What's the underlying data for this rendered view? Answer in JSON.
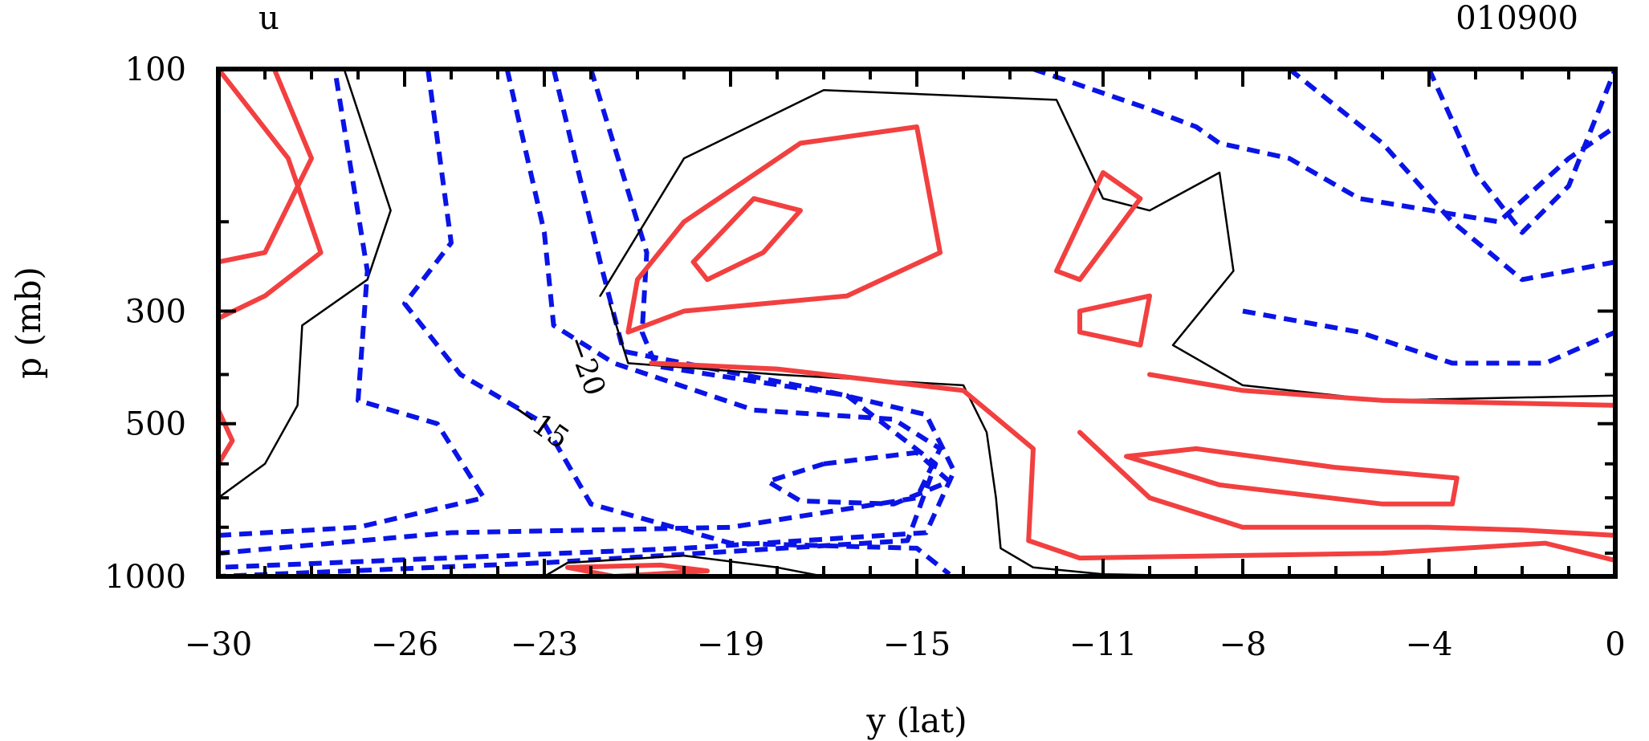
{
  "chart_data": {
    "type": "contour",
    "title_left": "u",
    "title_right": "010900",
    "xlabel": "y (lat)",
    "ylabel": "p (mb)",
    "xlim": [
      -30,
      0
    ],
    "ylim": [
      1000,
      100
    ],
    "x_tick_labels": [
      "−30",
      "−26",
      "−23",
      "−19",
      "−15",
      "−11",
      "−8",
      "−4",
      "0"
    ],
    "x_tick_values": [
      -30,
      -26,
      -23,
      -19,
      -15,
      -11,
      -8,
      -4,
      0
    ],
    "y_tick_labels": [
      "100",
      "300",
      "500",
      "1000"
    ],
    "y_tick_values": [
      100,
      300,
      500,
      1000
    ],
    "contour_labels": [
      {
        "text": "−20",
        "x": -22.3,
        "p": 390
      },
      {
        "text": "−15",
        "x": -23.2,
        "p": 520
      }
    ],
    "colors": {
      "positive": "#f24040",
      "negative": "#0a14e6",
      "zero": "#000000"
    },
    "contours": [
      {
        "kind": "zero",
        "points": [
          [
            -27.3,
            100
          ],
          [
            -26.3,
            190
          ],
          [
            -26.8,
            260
          ],
          [
            -28.2,
            320
          ],
          [
            -28.3,
            460
          ],
          [
            -29.0,
            600
          ],
          [
            -30.0,
            700
          ]
        ]
      },
      {
        "kind": "pos",
        "points": [
          [
            -30.0,
            100
          ],
          [
            -28.5,
            150
          ],
          [
            -27.8,
            230
          ],
          [
            -29.0,
            280
          ],
          [
            -30.0,
            310
          ]
        ]
      },
      {
        "kind": "pos",
        "points": [
          [
            -28.8,
            100
          ],
          [
            -28.0,
            150
          ],
          [
            -29.0,
            230
          ],
          [
            -30.0,
            240
          ]
        ]
      },
      {
        "kind": "pos",
        "points": [
          [
            -30.0,
            470
          ],
          [
            -29.7,
            540
          ],
          [
            -30.0,
            600
          ]
        ]
      },
      {
        "kind": "neg",
        "points": [
          [
            -25.5,
            100
          ],
          [
            -25.0,
            220
          ],
          [
            -26.0,
            290
          ],
          [
            -24.8,
            400
          ],
          [
            -23.0,
            500
          ],
          [
            -22.0,
            720
          ],
          [
            -19.0,
            860
          ],
          [
            -15.0,
            880
          ],
          [
            -14.3,
            990
          ]
        ]
      },
      {
        "kind": "neg",
        "points": [
          [
            -30.0,
            830
          ],
          [
            -27.0,
            800
          ],
          [
            -24.3,
            700
          ],
          [
            -25.3,
            500
          ],
          [
            -27.0,
            450
          ],
          [
            -26.8,
            250
          ],
          [
            -27.5,
            100
          ]
        ]
      },
      {
        "kind": "neg",
        "points": [
          [
            -23.8,
            100
          ],
          [
            -23.0,
            210
          ],
          [
            -22.8,
            320
          ],
          [
            -21.5,
            380
          ],
          [
            -18.5,
            470
          ],
          [
            -15.5,
            490
          ],
          [
            -14.5,
            560
          ],
          [
            -15.0,
            700
          ],
          [
            -19.0,
            800
          ],
          [
            -25.0,
            820
          ],
          [
            -30.0,
            900
          ]
        ]
      },
      {
        "kind": "neg",
        "points": [
          [
            -22.8,
            100
          ],
          [
            -21.8,
            240
          ],
          [
            -21.3,
            360
          ],
          [
            -17.0,
            430
          ],
          [
            -14.8,
            480
          ],
          [
            -14.2,
            620
          ],
          [
            -14.8,
            820
          ],
          [
            -20.0,
            880
          ],
          [
            -30.0,
            960
          ]
        ]
      },
      {
        "kind": "neg",
        "points": [
          [
            -22.0,
            100
          ],
          [
            -20.8,
            230
          ],
          [
            -20.9,
            330
          ],
          [
            -20.6,
            385
          ],
          [
            -16.5,
            440
          ],
          [
            -14.6,
            600
          ],
          [
            -15.2,
            850
          ],
          [
            -23.0,
            940
          ],
          [
            -30.0,
            1000
          ]
        ]
      },
      {
        "kind": "neg",
        "points": [
          [
            -17.0,
            600
          ],
          [
            -15.0,
            570
          ],
          [
            -14.3,
            650
          ],
          [
            -15.5,
            720
          ],
          [
            -17.5,
            710
          ],
          [
            -18.2,
            650
          ],
          [
            -17.0,
            600
          ]
        ]
      },
      {
        "kind": "zero",
        "points": [
          [
            -23.0,
            1000
          ],
          [
            -22.5,
            940
          ],
          [
            -20.0,
            910
          ],
          [
            -18.0,
            960
          ],
          [
            -17.0,
            1000
          ]
        ]
      },
      {
        "kind": "pos",
        "points": [
          [
            -22.5,
            960
          ],
          [
            -20.5,
            950
          ],
          [
            -19.5,
            975
          ],
          [
            -21.5,
            1000
          ],
          [
            -22.5,
            960
          ]
        ]
      },
      {
        "kind": "zero",
        "points": [
          [
            -21.8,
            280
          ],
          [
            -20.0,
            150
          ],
          [
            -17.0,
            110
          ],
          [
            -12.0,
            115
          ],
          [
            -11.0,
            180
          ],
          [
            -10.0,
            190
          ],
          [
            -8.5,
            160
          ],
          [
            -8.2,
            250
          ],
          [
            -9.5,
            350
          ],
          [
            -8.0,
            420
          ],
          [
            -5.0,
            450
          ],
          [
            0,
            440
          ]
        ]
      },
      {
        "kind": "zero",
        "points": [
          [
            -21.6,
            290
          ],
          [
            -21.2,
            380
          ],
          [
            -18.0,
            400
          ],
          [
            -14.0,
            420
          ],
          [
            -13.5,
            520
          ],
          [
            -13.3,
            700
          ],
          [
            -13.2,
            880
          ],
          [
            -12.5,
            960
          ],
          [
            -11.0,
            990
          ],
          [
            -8.5,
            1000
          ]
        ]
      },
      {
        "kind": "pos",
        "points": [
          [
            -21.2,
            330
          ],
          [
            -21.0,
            260
          ],
          [
            -20.0,
            200
          ],
          [
            -17.5,
            140
          ],
          [
            -15.0,
            130
          ],
          [
            -14.5,
            230
          ],
          [
            -16.5,
            280
          ],
          [
            -20.0,
            300
          ],
          [
            -21.2,
            330
          ]
        ]
      },
      {
        "kind": "pos",
        "points": [
          [
            -19.5,
            260
          ],
          [
            -18.3,
            230
          ],
          [
            -17.5,
            190
          ],
          [
            -18.5,
            180
          ],
          [
            -19.8,
            240
          ],
          [
            -19.5,
            260
          ]
        ]
      },
      {
        "kind": "pos",
        "points": [
          [
            -20.7,
            380
          ],
          [
            -18.0,
            390
          ],
          [
            -14.0,
            430
          ],
          [
            -12.5,
            560
          ],
          [
            -12.6,
            850
          ],
          [
            -11.5,
            920
          ],
          [
            -5.0,
            900
          ],
          [
            -1.5,
            860
          ],
          [
            0,
            930
          ]
        ]
      },
      {
        "kind": "pos",
        "points": [
          [
            -12.0,
            250
          ],
          [
            -11.0,
            160
          ],
          [
            -10.2,
            180
          ],
          [
            -11.5,
            260
          ],
          [
            -12.0,
            250
          ]
        ]
      },
      {
        "kind": "pos",
        "points": [
          [
            -10.0,
            400
          ],
          [
            -8.0,
            430
          ],
          [
            -5.0,
            450
          ],
          [
            0,
            460
          ]
        ]
      },
      {
        "kind": "pos",
        "points": [
          [
            -11.5,
            520
          ],
          [
            -10.0,
            700
          ],
          [
            -8.0,
            800
          ],
          [
            -4.0,
            800
          ],
          [
            -2.0,
            810
          ],
          [
            0,
            830
          ]
        ]
      },
      {
        "kind": "pos",
        "points": [
          [
            -10.5,
            580
          ],
          [
            -8.5,
            660
          ],
          [
            -5.0,
            720
          ],
          [
            -3.5,
            720
          ],
          [
            -3.4,
            640
          ],
          [
            -6.0,
            610
          ],
          [
            -9.0,
            560
          ],
          [
            -10.5,
            580
          ]
        ]
      },
      {
        "kind": "pos",
        "points": [
          [
            -11.5,
            300
          ],
          [
            -10.0,
            280
          ],
          [
            -10.2,
            350
          ],
          [
            -11.5,
            330
          ],
          [
            -11.5,
            300
          ]
        ]
      },
      {
        "kind": "neg",
        "points": [
          [
            -12.5,
            100
          ],
          [
            -10.0,
            120
          ],
          [
            -9.0,
            130
          ],
          [
            -8.5,
            140
          ],
          [
            -7.0,
            150
          ],
          [
            -5.5,
            180
          ],
          [
            -2.5,
            200
          ],
          [
            -1.0,
            150
          ],
          [
            0,
            130
          ]
        ]
      },
      {
        "kind": "neg",
        "points": [
          [
            -7.0,
            100
          ],
          [
            -5.0,
            140
          ],
          [
            -3.5,
            200
          ],
          [
            -2.0,
            260
          ],
          [
            0,
            240
          ]
        ]
      },
      {
        "kind": "neg",
        "points": [
          [
            -4.0,
            100
          ],
          [
            -3.0,
            160
          ],
          [
            -2.0,
            210
          ],
          [
            -1.0,
            170
          ],
          [
            0,
            100
          ]
        ]
      },
      {
        "kind": "neg",
        "points": [
          [
            -8.0,
            300
          ],
          [
            -5.5,
            330
          ],
          [
            -3.5,
            380
          ],
          [
            -1.5,
            380
          ],
          [
            0,
            330
          ]
        ]
      }
    ]
  }
}
